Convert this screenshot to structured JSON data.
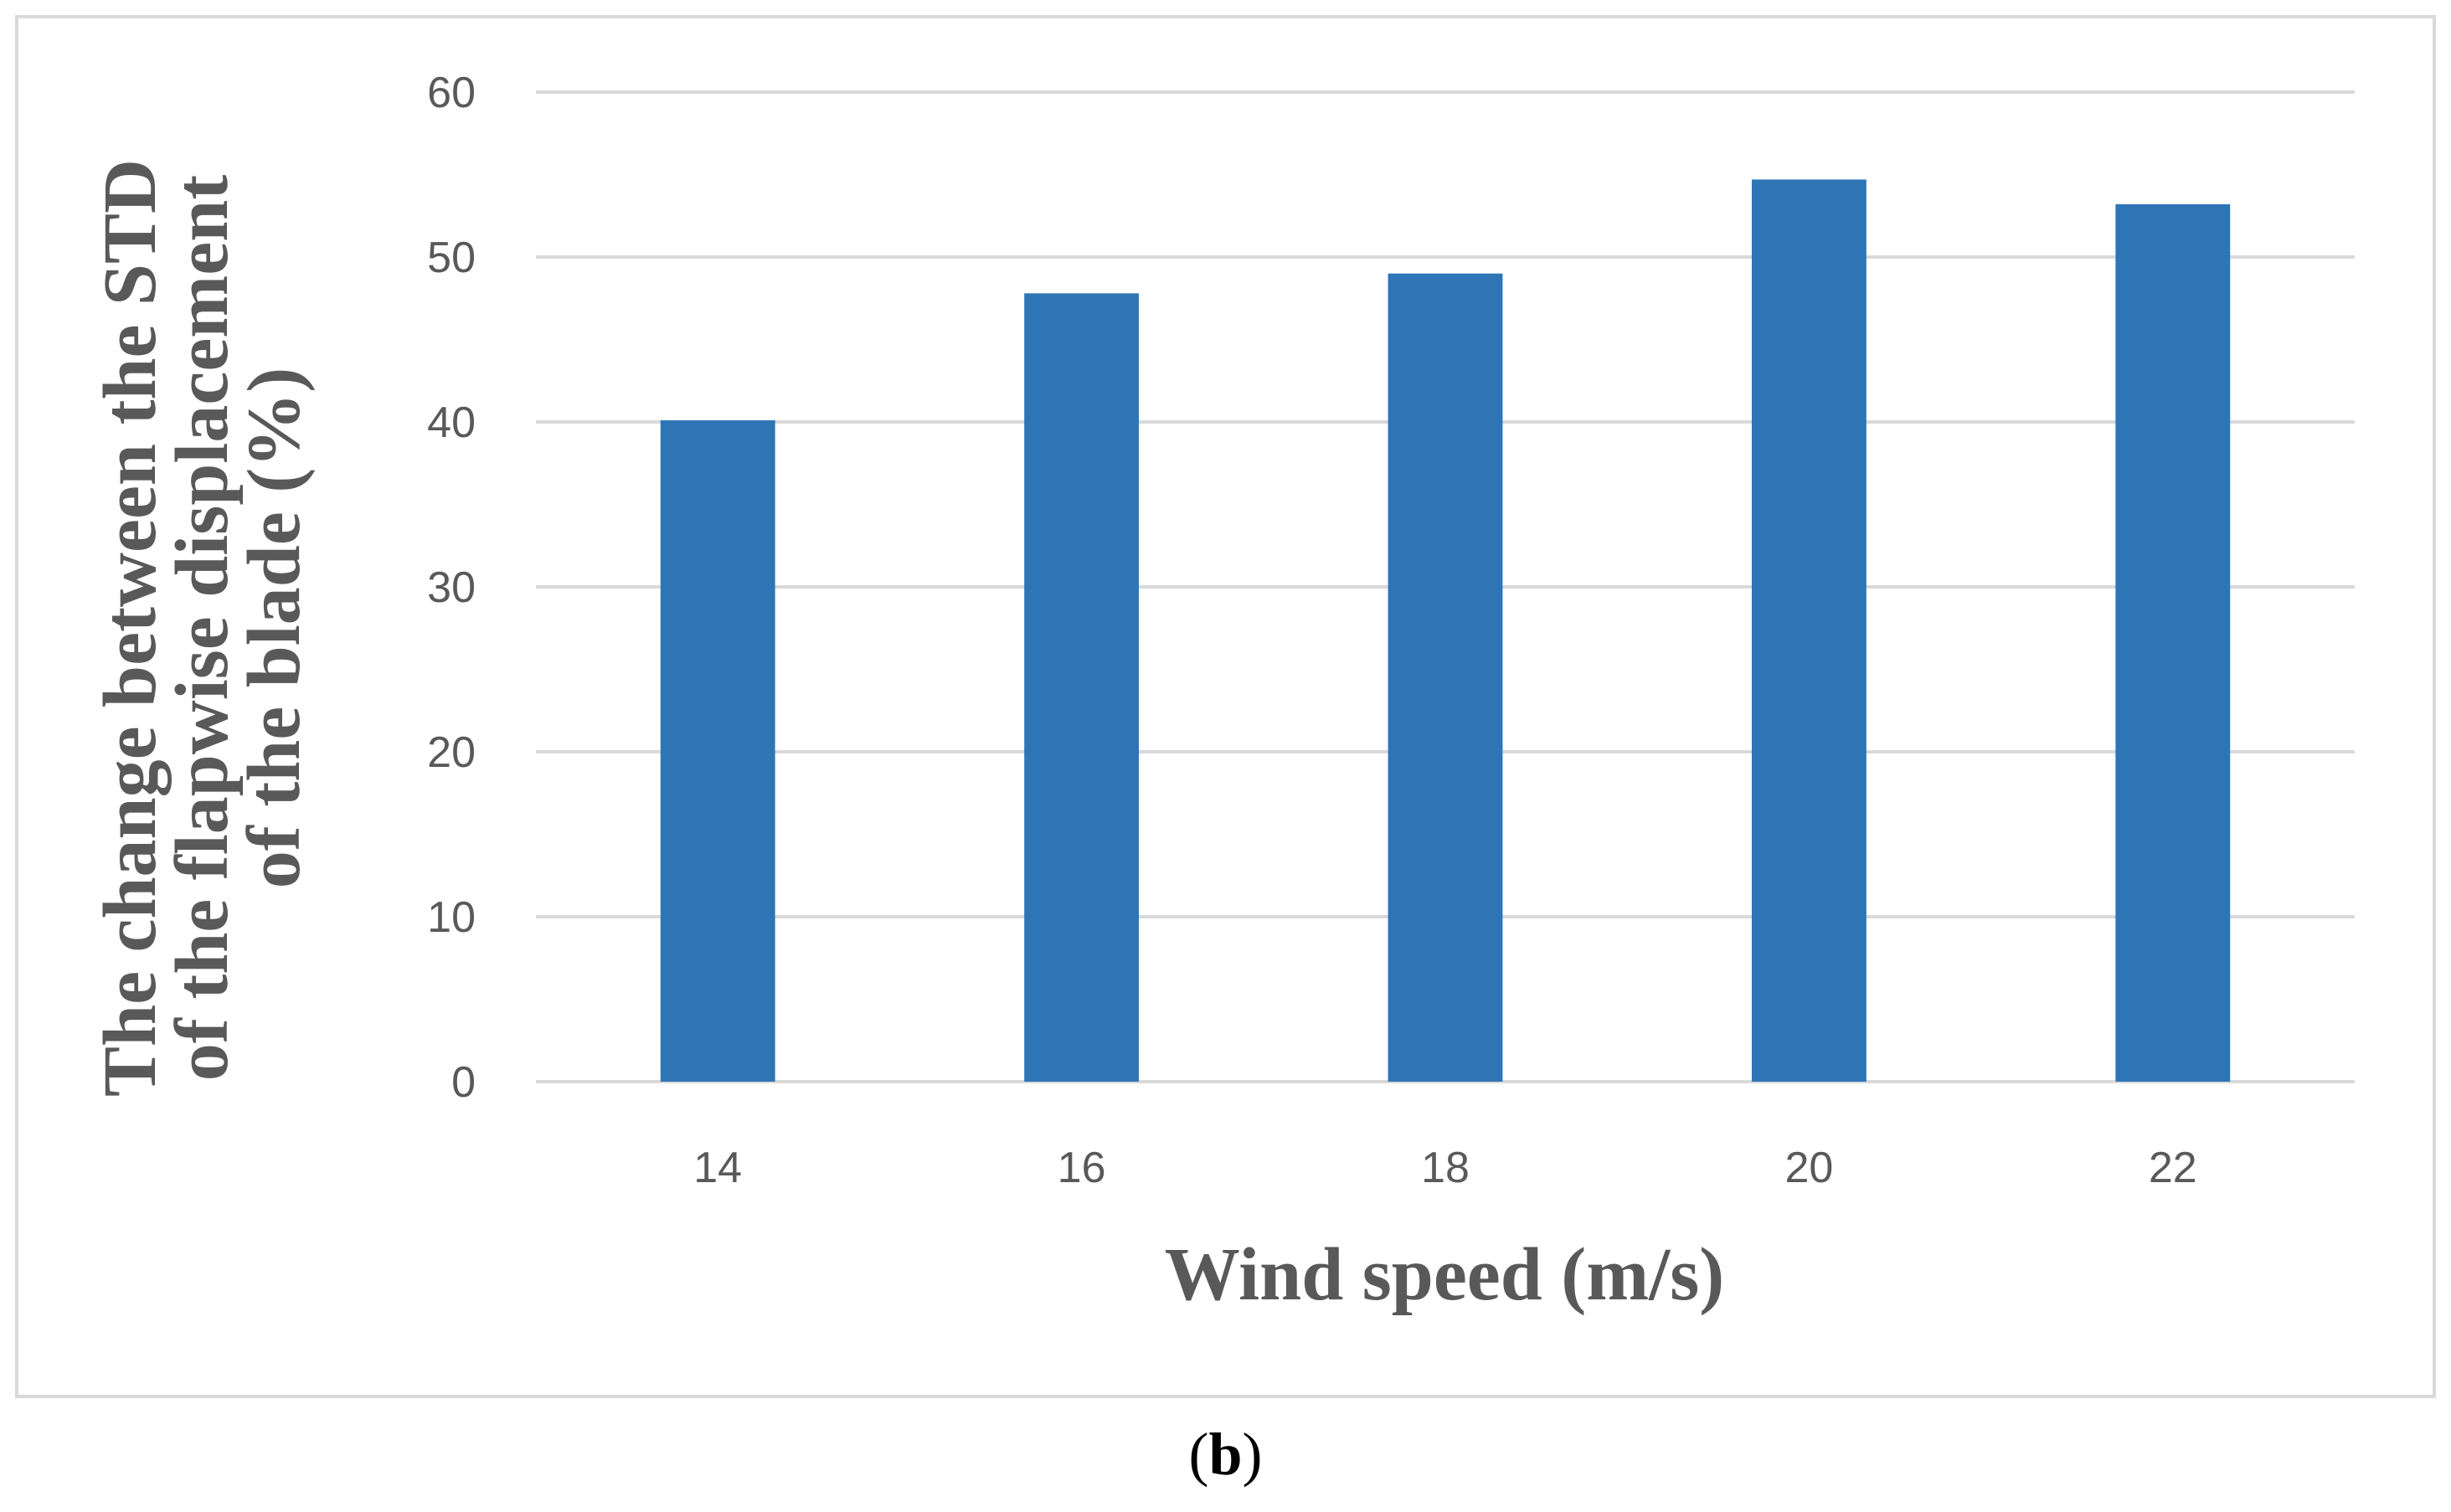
{
  "chart_data": {
    "type": "bar",
    "categories": [
      "14",
      "16",
      "18",
      "20",
      "22"
    ],
    "values": [
      40.1,
      47.8,
      49.0,
      54.7,
      53.2
    ],
    "title": "",
    "xlabel": "Wind speed (m/s)",
    "ylabel_lines": [
      "The change between the STD",
      "of the flapwise displacement",
      "of the blade (%)"
    ],
    "ylim": [
      0,
      60
    ],
    "yticks": [
      0,
      10,
      20,
      30,
      40,
      50,
      60
    ],
    "grid": true,
    "legend": "none",
    "bar_color": "#2e75b6",
    "grid_color": "#d9d9d9"
  },
  "panel_label": {
    "open": "(",
    "letter": "b",
    "close": ")"
  }
}
